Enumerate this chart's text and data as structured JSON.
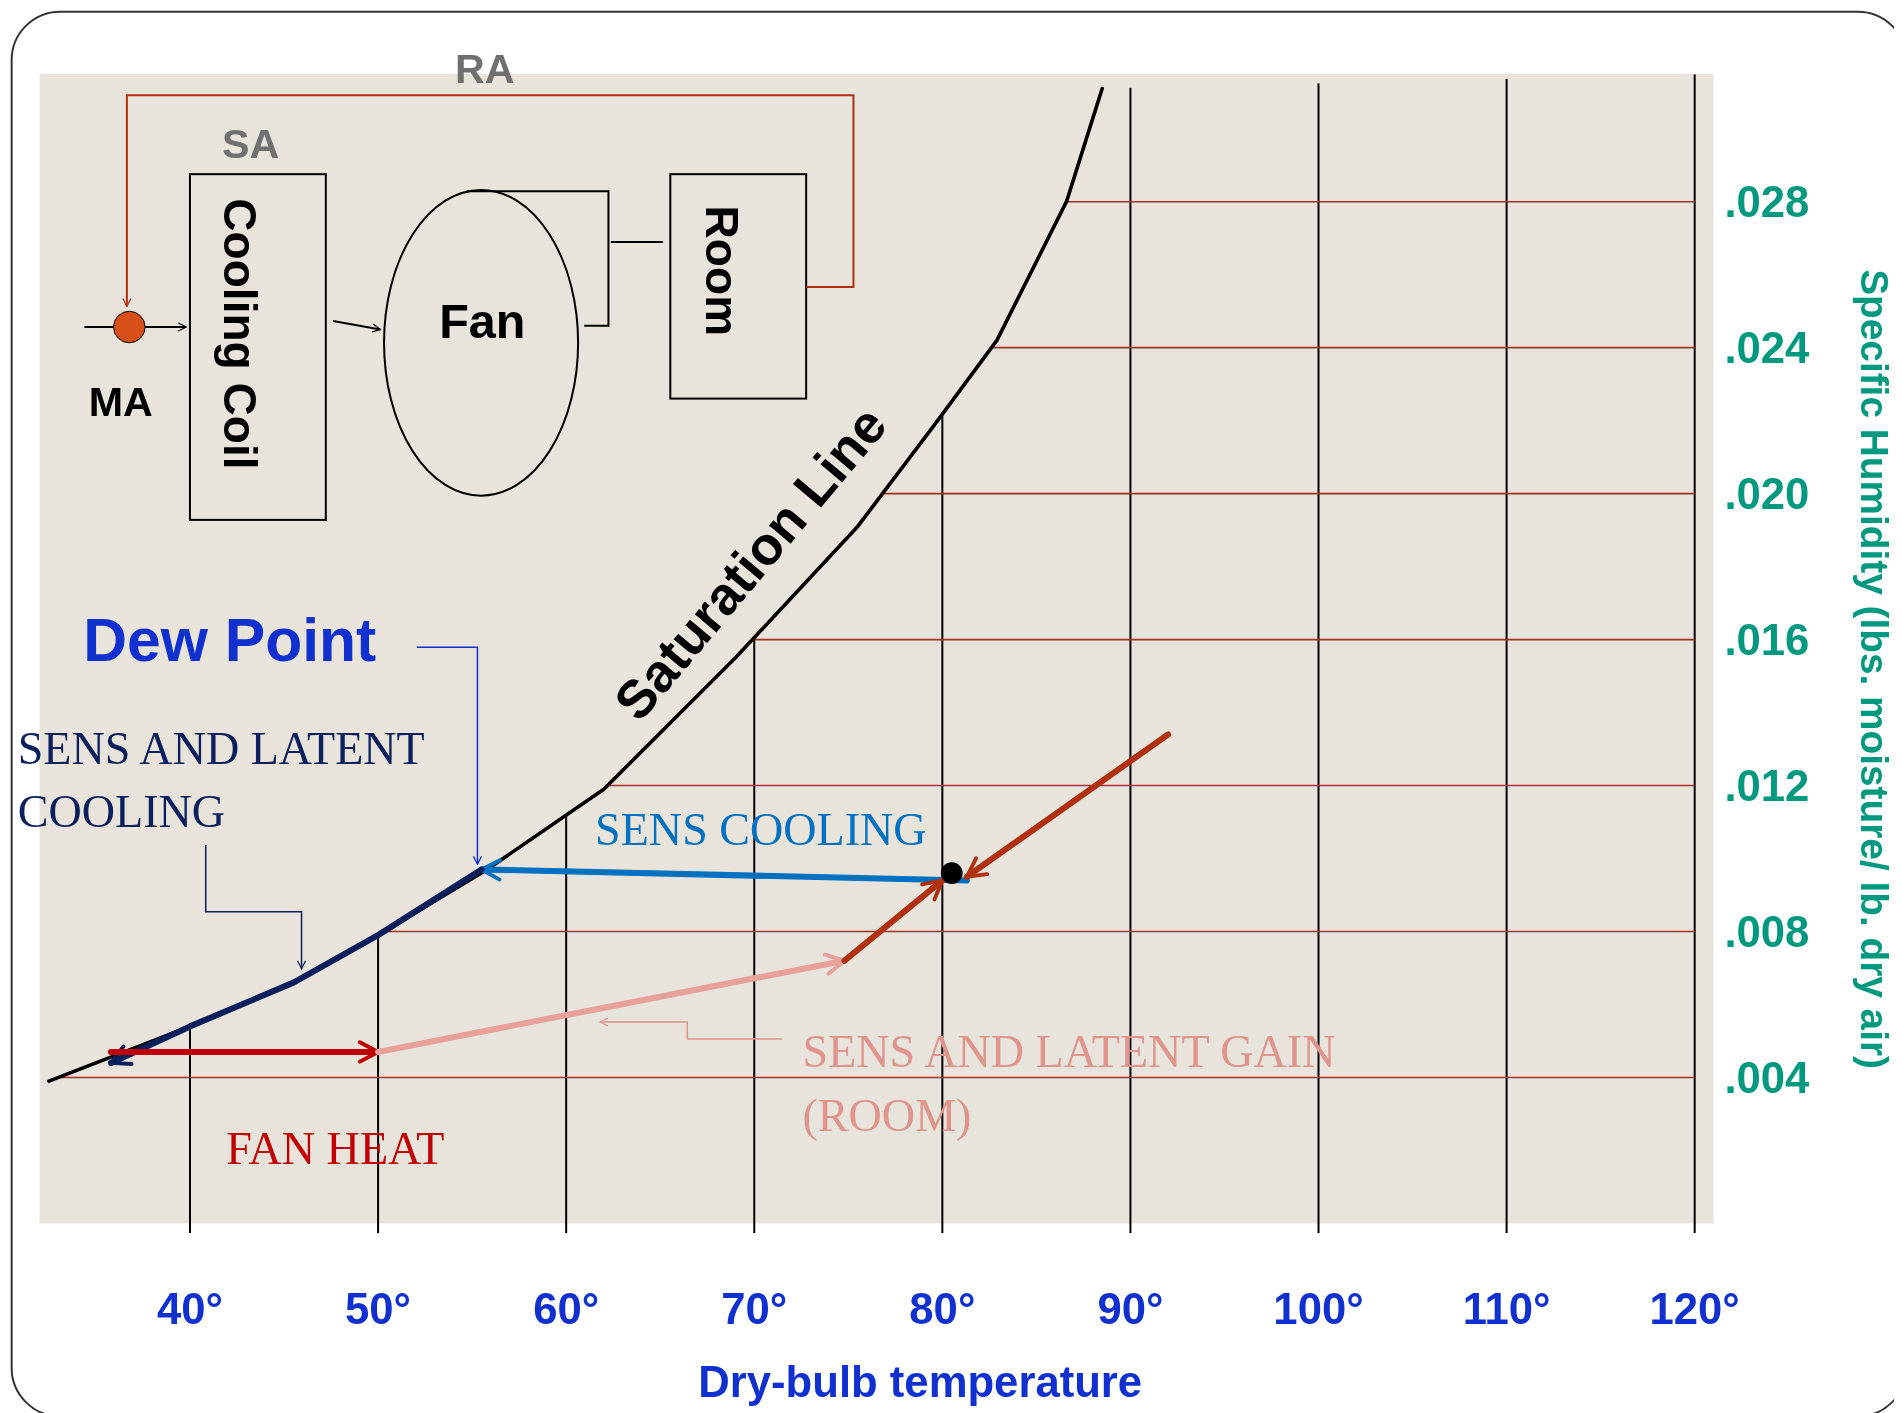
{
  "chart_data": {
    "type": "line",
    "xlabel": "Dry-bulb temperature",
    "ylabel": "Specific Humidity (lbs. moisture/ lb. dry air)",
    "xlim": [
      32,
      121
    ],
    "xticks": [
      {
        "value": 40,
        "label": "40°"
      },
      {
        "value": 50,
        "label": "50°"
      },
      {
        "value": 60,
        "label": "60°"
      },
      {
        "value": 70,
        "label": "70°"
      },
      {
        "value": 80,
        "label": "80°"
      },
      {
        "value": 90,
        "label": "90°"
      },
      {
        "value": 100,
        "label": "100°"
      },
      {
        "value": 110,
        "label": "110°"
      },
      {
        "value": 120,
        "label": "120°"
      }
    ],
    "ylim": [
      0,
      0.0315
    ],
    "yticks": [
      {
        "value": 0.004,
        "label": ".004"
      },
      {
        "value": 0.008,
        "label": ".008"
      },
      {
        "value": 0.012,
        "label": ".012"
      },
      {
        "value": 0.016,
        "label": ".016"
      },
      {
        "value": 0.02,
        "label": ".020"
      },
      {
        "value": 0.024,
        "label": ".024"
      },
      {
        "value": 0.028,
        "label": ".028"
      }
    ],
    "grid": "x",
    "ref_lines": [
      {
        "axis": "y",
        "value": 0.004,
        "color": "#a03020"
      },
      {
        "axis": "y",
        "value": 0.008,
        "color": "#a03020"
      },
      {
        "axis": "y",
        "value": 0.012,
        "color": "#a03020"
      },
      {
        "axis": "y",
        "value": 0.016,
        "color": "#a03020"
      },
      {
        "axis": "y",
        "value": 0.02,
        "color": "#a03020"
      },
      {
        "axis": "y",
        "value": 0.024,
        "color": "#a03020"
      },
      {
        "axis": "y",
        "value": 0.028,
        "color": "#a03020"
      }
    ],
    "series": [
      {
        "color": "#000000",
        "x": [
          32.5,
          40,
          45.5,
          50,
          55.8,
          62,
          69,
          75.5,
          79.6,
          82.9,
          86.6,
          88.5
        ],
        "values": [
          0.0039,
          0.0054,
          0.0066,
          0.0079,
          0.0097,
          0.0119,
          0.0155,
          0.0191,
          0.0219,
          0.0242,
          0.028,
          0.0311
        ]
      },
      {
        "color": "#0070c0",
        "x": [
          81.3,
          55.5
        ],
        "values": [
          0.0094,
          0.0097
        ]
      },
      {
        "color": "#0a1f5c",
        "x": [
          55.5,
          50,
          45.5,
          40,
          35.8
        ],
        "values": [
          0.0097,
          0.0079,
          0.0066,
          0.0054,
          0.0044
        ]
      },
      {
        "color": "#c00000",
        "x": [
          35.8,
          50
        ],
        "values": [
          0.0047,
          0.0047
        ]
      },
      {
        "color": "#e8a09a",
        "x": [
          50,
          74.8
        ],
        "values": [
          0.0047,
          0.0072
        ]
      },
      {
        "color": "#b03010",
        "x": [
          74.8,
          80
        ],
        "values": [
          0.0072,
          0.0094
        ]
      },
      {
        "color": "#b03010",
        "x": [
          92,
          81.3
        ],
        "values": [
          0.0134,
          0.0095
        ]
      },
      {
        "type": "scatter",
        "color": "#000000",
        "x": [
          80.5
        ],
        "values": [
          0.0096
        ]
      }
    ],
    "annotations": [
      "RA",
      "SA",
      "MA",
      "Cooling Coil",
      "Fan",
      "Room",
      "Saturation Line",
      "Dew Point",
      "SENS AND LATENT COOLING",
      "SENS COOLING",
      "SENS AND LATENT GAIN (ROOM)",
      "FAN HEAT"
    ]
  }
}
